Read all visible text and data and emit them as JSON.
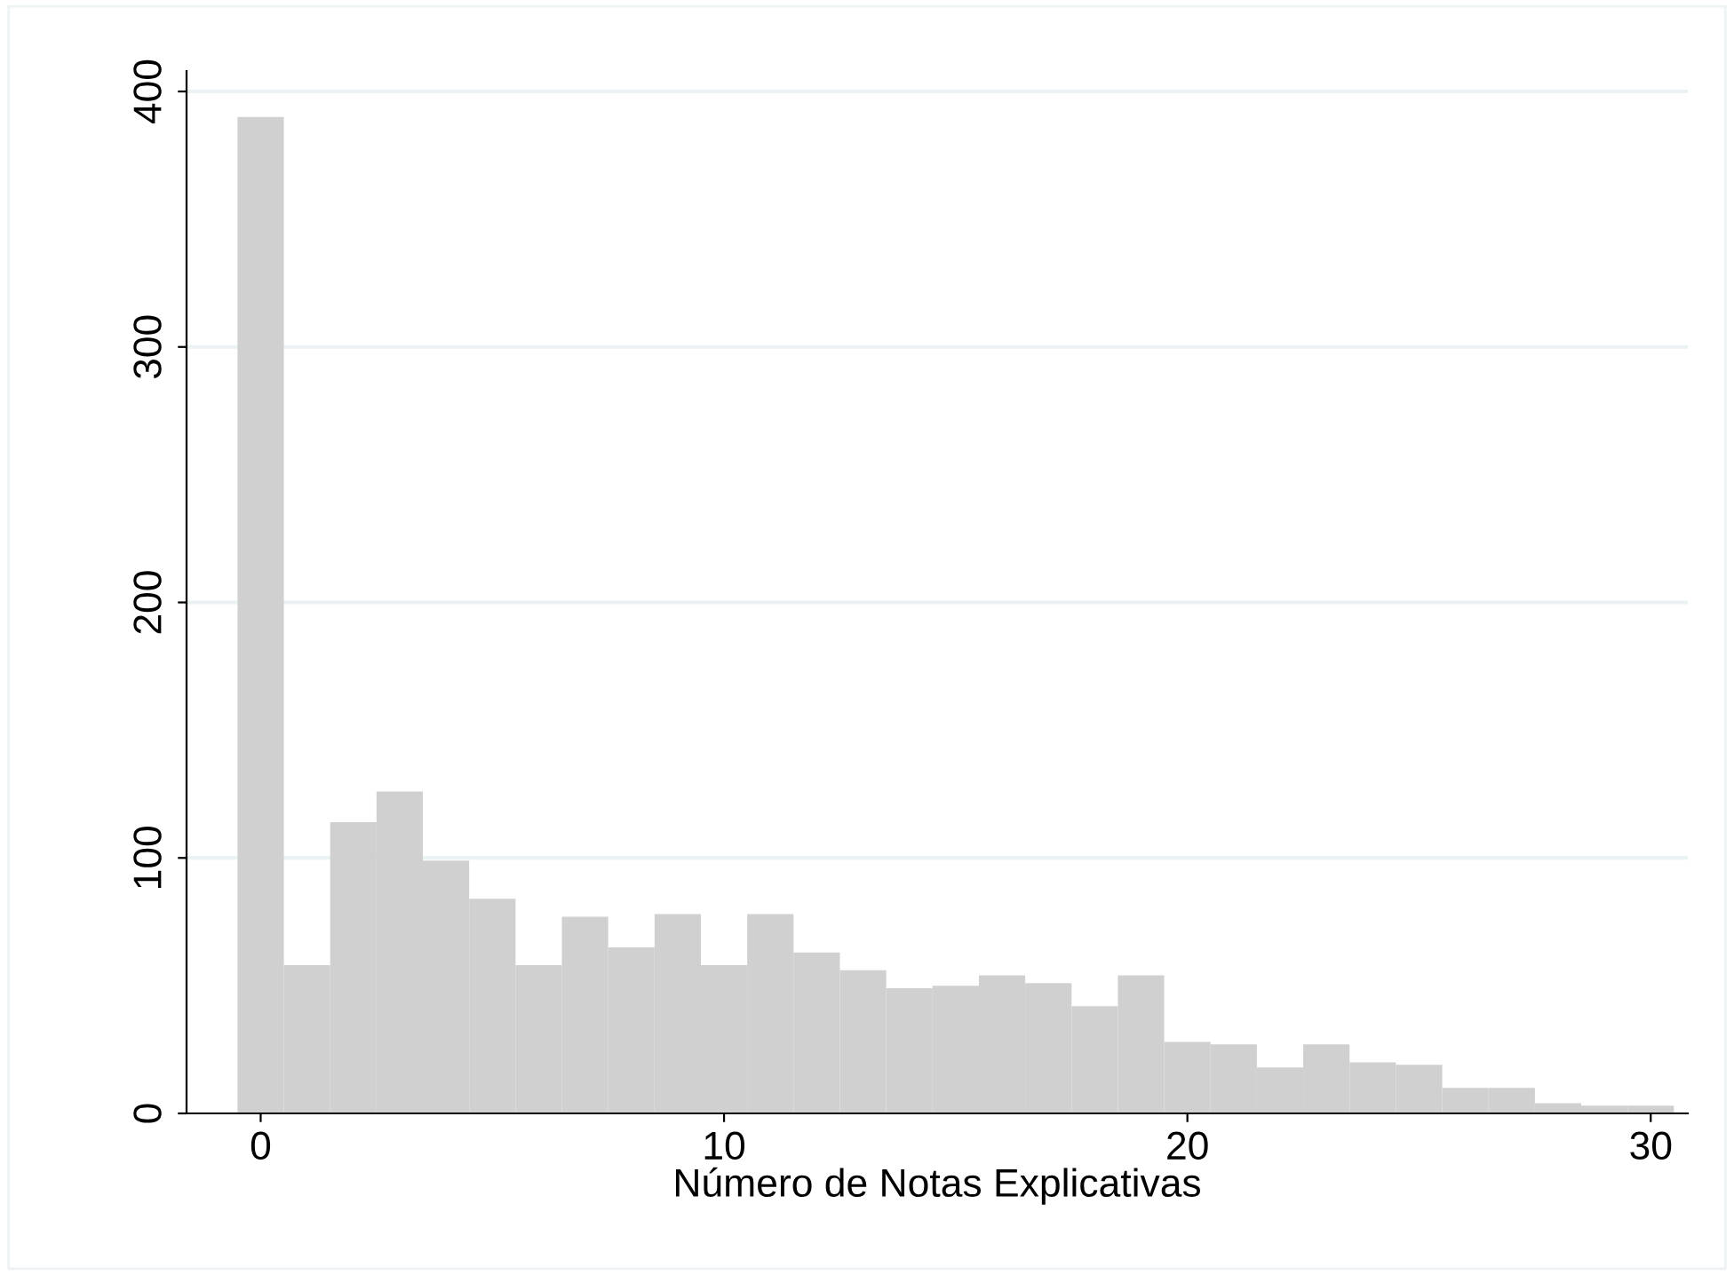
{
  "chart_data": {
    "type": "histogram",
    "xlabel": "Número de Notas Explicativas",
    "bins": [
      -0.5,
      0.5,
      1.5,
      2.5,
      3.5,
      4.5,
      5.5,
      6.5,
      7.5,
      8.5,
      9.5,
      10.5,
      11.5,
      12.5,
      13.5,
      14.5,
      15.5,
      16.5,
      17.5,
      18.5,
      19.5,
      20.5,
      21.5,
      22.5,
      23.5,
      24.5,
      25.5,
      26.5,
      27.5,
      28.5,
      29.5,
      30.5
    ],
    "values": [
      390,
      58,
      114,
      126,
      99,
      84,
      58,
      77,
      65,
      78,
      58,
      78,
      63,
      56,
      49,
      50,
      54,
      51,
      42,
      54,
      28,
      27,
      18,
      27,
      20,
      19,
      10,
      10,
      4,
      3,
      3
    ],
    "color": "#d0d0d0",
    "xlim": [
      -1.6,
      30.8
    ],
    "ylim": [
      0,
      408
    ],
    "xticks": [
      0,
      10,
      20,
      30
    ],
    "yticks": [
      0,
      100,
      200,
      300,
      400
    ],
    "grid": "y"
  }
}
